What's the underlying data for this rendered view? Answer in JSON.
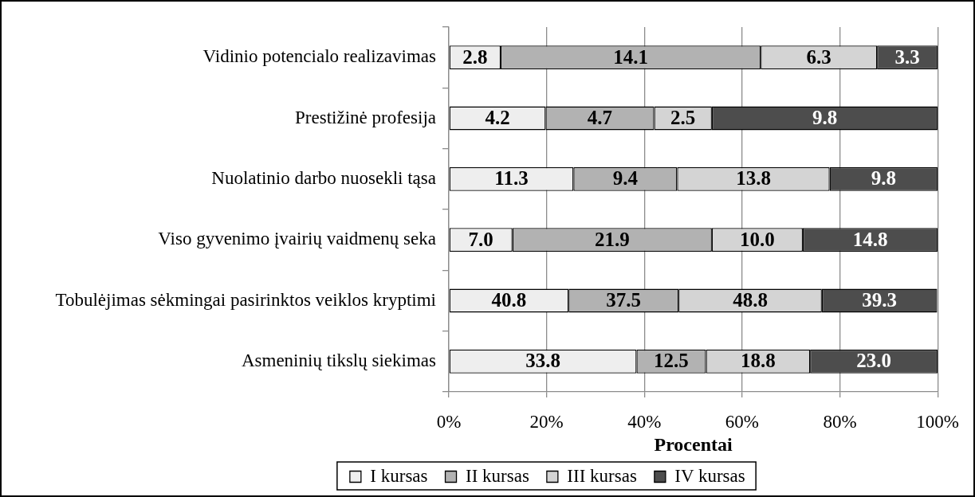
{
  "chart_data": {
    "type": "bar",
    "orientation": "horizontal",
    "stacked": true,
    "categories": [
      "Vidinio potencialo realizavimas",
      "Prestižinė profesija",
      "Nuolatinio darbo nuosekli tąsa",
      "Viso gyvenimo įvairių vaidmenų seka",
      "Tobulėjimas sėkmingai pasirinktos veiklos kryptimi",
      "Asmeninių tikslų siekimas"
    ],
    "series": [
      {
        "name": "I kursas",
        "color": "#eeeeee",
        "values": [
          10.6,
          19.8,
          25.5,
          13.0,
          24.5,
          38.4
        ]
      },
      {
        "name": "II kursas",
        "color": "#b2b2b2",
        "values": [
          53.2,
          22.2,
          21.2,
          40.8,
          22.5,
          14.2
        ]
      },
      {
        "name": "III kursas",
        "color": "#d4d4d4",
        "values": [
          23.8,
          11.8,
          31.2,
          18.6,
          29.3,
          21.3
        ]
      },
      {
        "name": "IV kursas",
        "color": "#4d4d4d",
        "values": [
          12.4,
          46.2,
          22.1,
          27.6,
          23.6,
          26.1
        ]
      }
    ],
    "annotations": [
      "2.8",
      "14.1",
      "6.3",
      "3.3",
      "4.2",
      "4.7",
      "2.5",
      "9.8",
      "11.3",
      "9.4",
      "13.8",
      "9.8",
      "7.0",
      "21.9",
      "10.0",
      "14.8",
      "40.8",
      "37.5",
      "48.8",
      "39.3",
      "33.8",
      "12.5",
      "18.8",
      "23.0"
    ],
    "xlim": [
      0,
      100
    ],
    "xticks": [
      {
        "value": 0,
        "label": "0%"
      },
      {
        "value": 20,
        "label": "20%"
      },
      {
        "value": 40,
        "label": "40%"
      },
      {
        "value": 60,
        "label": "60%"
      },
      {
        "value": 80,
        "label": "80%"
      },
      {
        "value": 100,
        "label": "100%"
      }
    ],
    "xlabel": "Procentai",
    "grid": "x",
    "legend": "bottom"
  }
}
